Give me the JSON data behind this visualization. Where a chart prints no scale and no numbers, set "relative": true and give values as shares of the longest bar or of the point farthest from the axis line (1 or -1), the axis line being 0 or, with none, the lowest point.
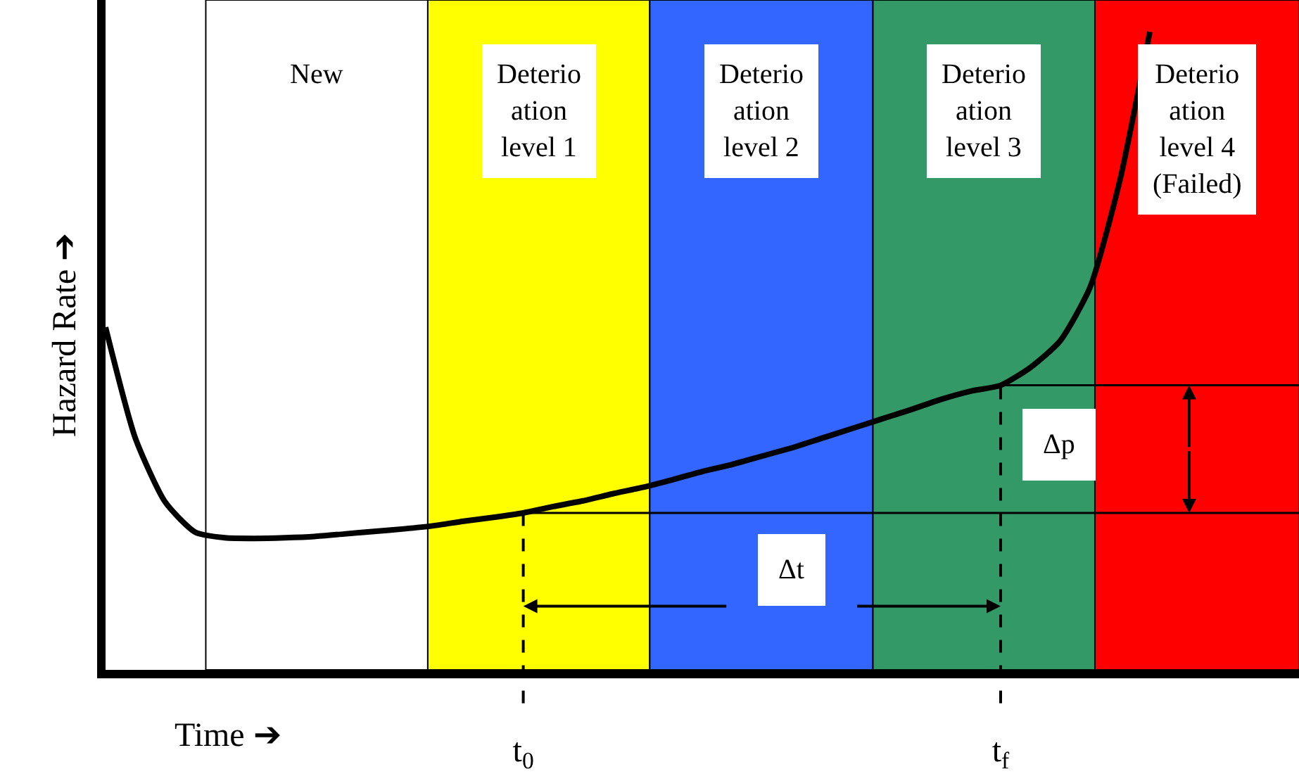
{
  "chart_data": {
    "type": "line",
    "relative": true,
    "xlabel": "Time ➔",
    "ylabel": "Hazard Rate ➔",
    "categories": [
      null,
      null,
      null,
      null,
      null,
      null,
      null,
      null,
      null,
      null,
      null,
      null,
      null,
      null,
      "t$_{0}$",
      null,
      null,
      null,
      null,
      null,
      null,
      null,
      null,
      null,
      null,
      null,
      null,
      null,
      null,
      null,
      "t$_{f}$",
      null,
      null,
      null,
      null,
      null,
      null,
      null,
      null,
      null,
      null
    ],
    "series": [
      {
        "color": "#000000",
        "values": [
          0.537,
          0.363,
          0.263,
          0.216,
          0.207,
          0.206,
          0.207,
          0.209,
          0.213,
          0.217,
          0.221,
          0.226,
          0.233,
          0.239,
          0.246,
          0.256,
          0.265,
          0.276,
          0.286,
          0.298,
          0.311,
          0.322,
          0.335,
          0.348,
          0.363,
          0.378,
          0.393,
          0.408,
          0.424,
          0.437,
          0.446,
          0.474,
          0.516,
          0.6,
          0.768,
          1.0,
          null,
          null,
          null,
          null,
          null
        ]
      }
    ],
    "ref_lines": [
      {
        "axis": "y",
        "value": 0.246,
        "color": "#000000"
      },
      {
        "axis": "y",
        "value": 0.446,
        "color": "#000000"
      },
      {
        "axis": "x",
        "value": "t$_{0}$",
        "color": "#000000",
        "line_style": "dashed"
      },
      {
        "axis": "x",
        "value": "t$_{f}$",
        "color": "#000000",
        "line_style": "dashed"
      }
    ],
    "annotations": [
      "New",
      "Deterio\nation\nlevel 1",
      "Deterio\nation\nlevel 2",
      "Deterio\nation\nlevel 3",
      "Deterio\nation\nlevel 4\n(Failed)",
      "Δt",
      "Δp"
    ],
    "marker": "none",
    "line_style": "solid",
    "tick_labels": "x"
  }
}
